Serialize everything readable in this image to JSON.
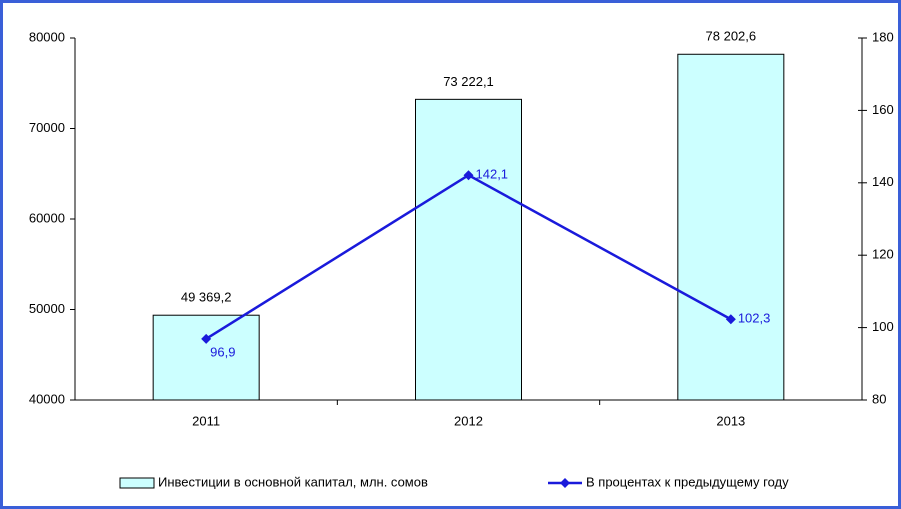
{
  "chart_data": {
    "type": "combo",
    "categories": [
      "2011",
      "2012",
      "2013"
    ],
    "series": [
      {
        "name": "Инвестиции в основной капитал, млн. сомов",
        "type": "bar",
        "color": "#ccffff",
        "values": [
          49369.2,
          73222.1,
          78202.6
        ],
        "value_labels": [
          "49 369,2",
          "73 222,1",
          "78 202,6"
        ]
      },
      {
        "name": "В процентах к предыдущему году",
        "type": "line",
        "axis": "y2",
        "color": "#1a1adb",
        "values": [
          96.9,
          142.1,
          102.3
        ],
        "value_labels": [
          "96,9",
          "142,1",
          "102,3"
        ]
      }
    ],
    "ylim": [
      40000,
      80000
    ],
    "yticks": [
      40000,
      50000,
      60000,
      70000,
      80000
    ],
    "y2lim": [
      80,
      180
    ],
    "y2ticks": [
      80,
      100,
      120,
      140,
      160,
      180
    ],
    "grid": false,
    "legend": "bottom"
  }
}
